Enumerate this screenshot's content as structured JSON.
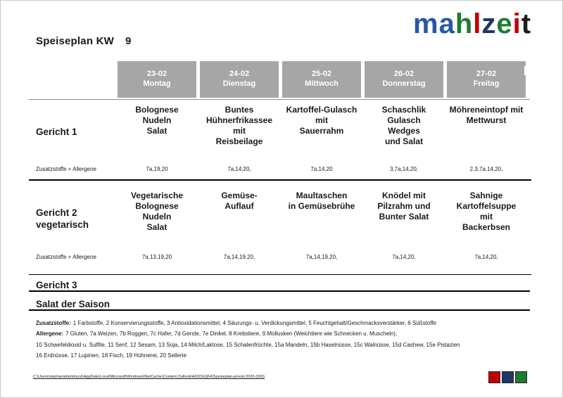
{
  "logo": {
    "letters": [
      {
        "ch": "m",
        "color": "#2a56a5"
      },
      {
        "ch": "a",
        "color": "#2a56a5"
      },
      {
        "ch": "h",
        "color": "#1e7c33"
      },
      {
        "ch": "l",
        "color": "#c00000"
      },
      {
        "ch": "z",
        "color": "#1f3864"
      },
      {
        "ch": "e",
        "color": "#1e7c33"
      },
      {
        "ch": "i",
        "color": "#c00000"
      },
      {
        "ch": "t",
        "color": "#1d1d1b"
      }
    ]
  },
  "title": {
    "label": "Speiseplan KW",
    "week": "9"
  },
  "table": {
    "days": [
      {
        "date": "23-02",
        "day": "Montag"
      },
      {
        "date": "24-02",
        "day": "Dienstag"
      },
      {
        "date": "25-02",
        "day": "Mittwoch"
      },
      {
        "date": "26-02",
        "day": "Donnerstag"
      },
      {
        "date": "27-02",
        "day": "Freitag"
      }
    ],
    "gericht1": {
      "label": "Gericht 1",
      "dishes": [
        "Bolognese\nNudeln\nSalat",
        "Buntes\nHühnerfrikassee\nmit\nReisbeilage",
        "Kartoffel-Gulasch\nmit\nSauerrahm",
        "Schaschlik\nGulasch\nWedges\nund Salat",
        "Möhreneintopf mit\nMettwurst"
      ],
      "allergen_label": "Zusatzstoffe + Allergene",
      "allergens": [
        "7a,19,20",
        "7a,14,20,",
        "7a,14,20",
        "3,7a,14,20,",
        "2,3,7a,14,20,"
      ]
    },
    "gericht2": {
      "label": "Gericht 2\nvegetarisch",
      "dishes": [
        "Vegetarische\nBolognese\nNudeln\nSalat",
        "Gemüse-\nAuflauf",
        "Maultaschen\nin Gemüsebrühe",
        "Knödel mit\nPilzrahm und\nBunter Salat",
        "Sahnige\nKartoffelsuppe\nmit\nBackerbsen"
      ],
      "allergen_label": "Zusatzstoffe + Allergene",
      "allergens": [
        "7a,13,19,20",
        "7a,14,19,20,",
        "7a,14,19,20,",
        "7a,14,20,",
        "7a,14,20,"
      ]
    },
    "gericht3_label": "Gericht 3",
    "salat_label": "Salat der Saison"
  },
  "footer": {
    "zusatz_label": "Zusatzstoffe:",
    "zusatz_text": "1 Farbstoffe, 2 Konservierungsstoffe, 3 Antioxidationsmittel, 4 Säurungs- u. Verdickungsmittel, 5 Feuchtgehalt/Geschmacksverstärker, 6 Süßstoffe",
    "allergen_label": "Allergene:",
    "allergen_text": "7 Gluten, 7a Weizen, 7b Roggen, 7c Hafer, 7d Gerste, 7e Dinkel, 8 Krebstiere, 9 Mollusken (Weichtiere wie Schnecken u. Muscheln),",
    "allergen_text2": "10 Schwefeldioxid u. Sulfite, 11 Senf, 12 Sesam, 13 Soja, 14 Milch/Laktose, 15 Schalenfrüchte, 15a Mandeln, 15b Haselnüsse, 15c Walnüsse, 15d Cashew, 15e Pistazien",
    "allergen_text3": "16 Erdnüsse, 17 Lupinen, 18 Fisch, 19 Hühnerei, 20 Sellerie"
  },
  "statusbar": {
    "file_path": "C:\\Users\\stephaniebortoluzzi\\AppData\\Local\\Microsoft\\Windows\\INetCache\\Content.Outlook\\AIOOGQ64\\Speiseplan-provisl 2026 (003)"
  },
  "footer_squares": [
    "#c00000",
    "#1f3864",
    "#1e7a33"
  ]
}
